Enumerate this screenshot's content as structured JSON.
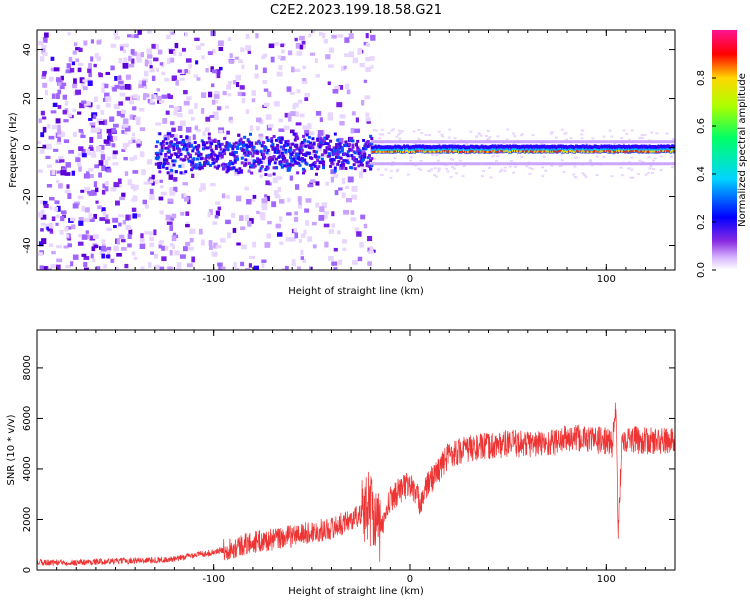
{
  "title": "C2E2.2023.199.18.58.G21",
  "chart_data": [
    {
      "type": "heatmap",
      "xlabel": "Height of straight line (km)",
      "ylabel": "Frequency (Hz)",
      "xlim": [
        -190,
        135
      ],
      "ylim": [
        -50,
        48
      ],
      "xticks": [
        -100,
        0,
        100
      ],
      "yticks": [
        -40,
        -20,
        0,
        20,
        40
      ],
      "colorbar": {
        "label": "Normalized spectral amplitude",
        "range": [
          0,
          1
        ],
        "ticks": [
          0.0,
          0.2,
          0.4,
          0.6,
          0.8
        ],
        "colors": [
          "#ffffff",
          "#d9b8ff",
          "#8a2be2",
          "#0000ff",
          "#00d5ff",
          "#00ff66",
          "#aaff00",
          "#ffd700",
          "#ff0000",
          "#ff1493"
        ]
      },
      "description_points": {
        "band_frequency_hz": -2,
        "band_start_km": -130,
        "noise_region_km": [
          -190,
          -20
        ]
      },
      "grid": false
    },
    {
      "type": "line",
      "xlabel": "Height of straight line (km)",
      "ylabel": "SNR (10 * v/v)",
      "xlim": [
        -190,
        135
      ],
      "ylim": [
        0,
        9500
      ],
      "xticks": [
        -100,
        0,
        100
      ],
      "yticks": [
        0,
        2000,
        4000,
        6000,
        8000
      ],
      "series": [
        {
          "color": "#ee3333",
          "x": [
            -190,
            -170,
            -150,
            -130,
            -120,
            -110,
            -100,
            -90,
            -80,
            -70,
            -60,
            -50,
            -40,
            -30,
            -25,
            -20,
            -15,
            -10,
            -5,
            0,
            5,
            10,
            15,
            20,
            30,
            40,
            50,
            60,
            70,
            80,
            90,
            100,
            103,
            105,
            106,
            108,
            110,
            120,
            135
          ],
          "y": [
            300,
            300,
            350,
            400,
            420,
            600,
            700,
            900,
            1100,
            1200,
            1350,
            1500,
            1650,
            2000,
            2200,
            2600,
            1500,
            2800,
            3200,
            3400,
            2700,
            3500,
            4000,
            4600,
            4800,
            4900,
            5000,
            5000,
            5000,
            5200,
            5200,
            5100,
            5000,
            6500,
            1200,
            5300,
            5200,
            5100,
            5100
          ]
        }
      ],
      "grid": false
    }
  ]
}
